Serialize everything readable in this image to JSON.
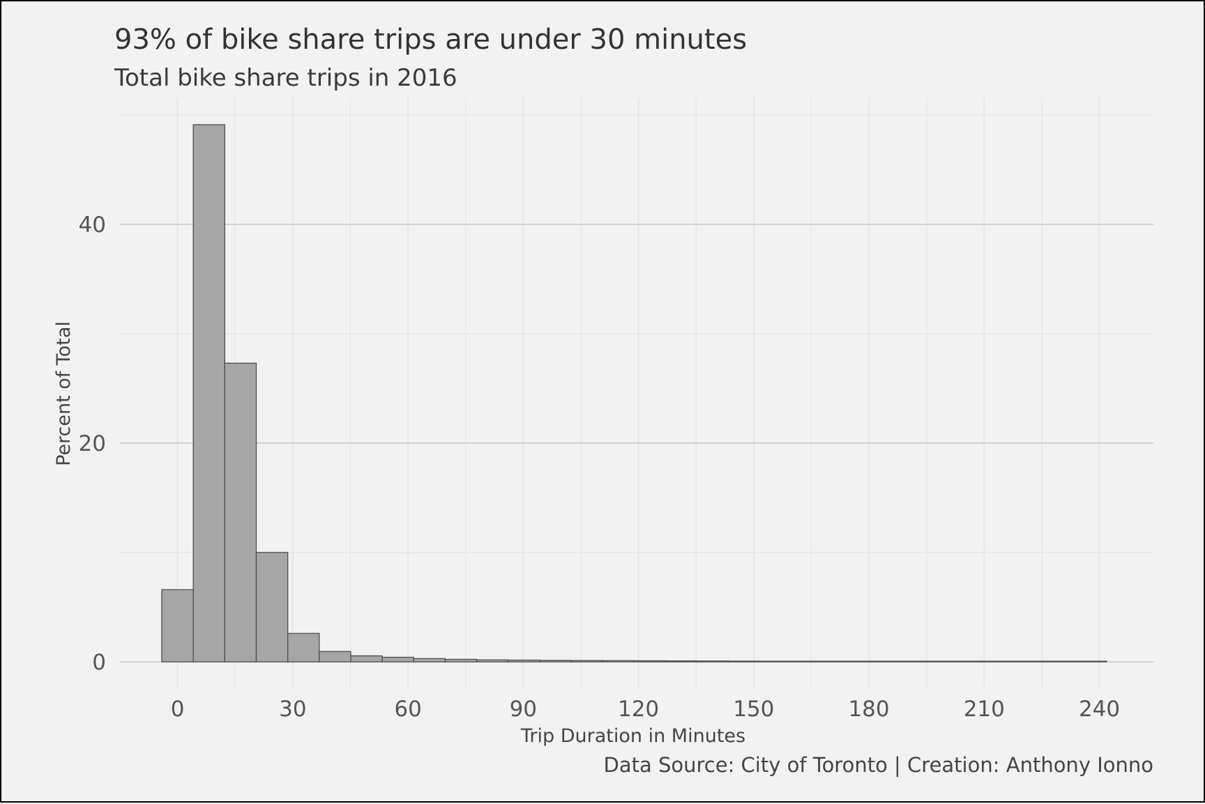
{
  "chart_data": {
    "type": "bar",
    "histogram": true,
    "title": "93% of bike share trips are under 30 minutes",
    "subtitle": "Total bike share trips in 2016",
    "xlabel": "Trip Duration in Minutes",
    "ylabel": "Percent of Total",
    "caption": "Data Source: City of Toronto | Creation: Anthony Ionno",
    "bin_width": 8.2,
    "bins": [
      {
        "start": -4.1,
        "end": 4.1,
        "value": 6.6
      },
      {
        "start": 4.1,
        "end": 12.3,
        "value": 49.1
      },
      {
        "start": 12.3,
        "end": 20.5,
        "value": 27.3
      },
      {
        "start": 20.5,
        "end": 28.7,
        "value": 10.0
      },
      {
        "start": 28.7,
        "end": 36.9,
        "value": 2.6
      },
      {
        "start": 36.9,
        "end": 45.1,
        "value": 0.95
      },
      {
        "start": 45.1,
        "end": 53.3,
        "value": 0.55
      },
      {
        "start": 53.3,
        "end": 61.5,
        "value": 0.42
      },
      {
        "start": 61.5,
        "end": 69.7,
        "value": 0.3
      },
      {
        "start": 69.7,
        "end": 77.9,
        "value": 0.23
      },
      {
        "start": 77.9,
        "end": 86.1,
        "value": 0.18
      },
      {
        "start": 86.1,
        "end": 94.3,
        "value": 0.16
      },
      {
        "start": 94.3,
        "end": 102.5,
        "value": 0.14
      },
      {
        "start": 102.5,
        "end": 110.7,
        "value": 0.12
      },
      {
        "start": 110.7,
        "end": 118.9,
        "value": 0.11
      },
      {
        "start": 118.9,
        "end": 127.1,
        "value": 0.1
      },
      {
        "start": 127.1,
        "end": 135.3,
        "value": 0.09
      },
      {
        "start": 135.3,
        "end": 143.5,
        "value": 0.08
      },
      {
        "start": 143.5,
        "end": 151.7,
        "value": 0.07
      },
      {
        "start": 151.7,
        "end": 159.9,
        "value": 0.06
      },
      {
        "start": 159.9,
        "end": 168.1,
        "value": 0.06
      },
      {
        "start": 168.1,
        "end": 176.3,
        "value": 0.05
      },
      {
        "start": 176.3,
        "end": 184.5,
        "value": 0.05
      },
      {
        "start": 184.5,
        "end": 192.7,
        "value": 0.05
      },
      {
        "start": 192.7,
        "end": 200.9,
        "value": 0.04
      },
      {
        "start": 200.9,
        "end": 209.1,
        "value": 0.04
      },
      {
        "start": 209.1,
        "end": 217.3,
        "value": 0.04
      },
      {
        "start": 217.3,
        "end": 225.5,
        "value": 0.04
      },
      {
        "start": 225.5,
        "end": 233.7,
        "value": 0.04
      },
      {
        "start": 233.7,
        "end": 241.9,
        "value": 0.03
      }
    ],
    "xlim": [
      -4.1,
      241.9
    ],
    "xticks": [
      0,
      30,
      60,
      90,
      120,
      150,
      180,
      210,
      240
    ],
    "xtick_labels": [
      "0",
      "30",
      "60",
      "90",
      "120",
      "150",
      "180",
      "210",
      "240"
    ],
    "ylim": [
      0,
      49.1
    ],
    "yticks": [
      0,
      20,
      40
    ],
    "ytick_labels": [
      "0",
      "20",
      "40"
    ],
    "grid": true,
    "colors": {
      "background": "#f2f2f2",
      "bar_fill": "#a6a6a6",
      "bar_outline": "#4d4d4d",
      "major_grid": "#cccccc",
      "minor_grid": "#e4e4e4",
      "frame": "#000000"
    }
  }
}
